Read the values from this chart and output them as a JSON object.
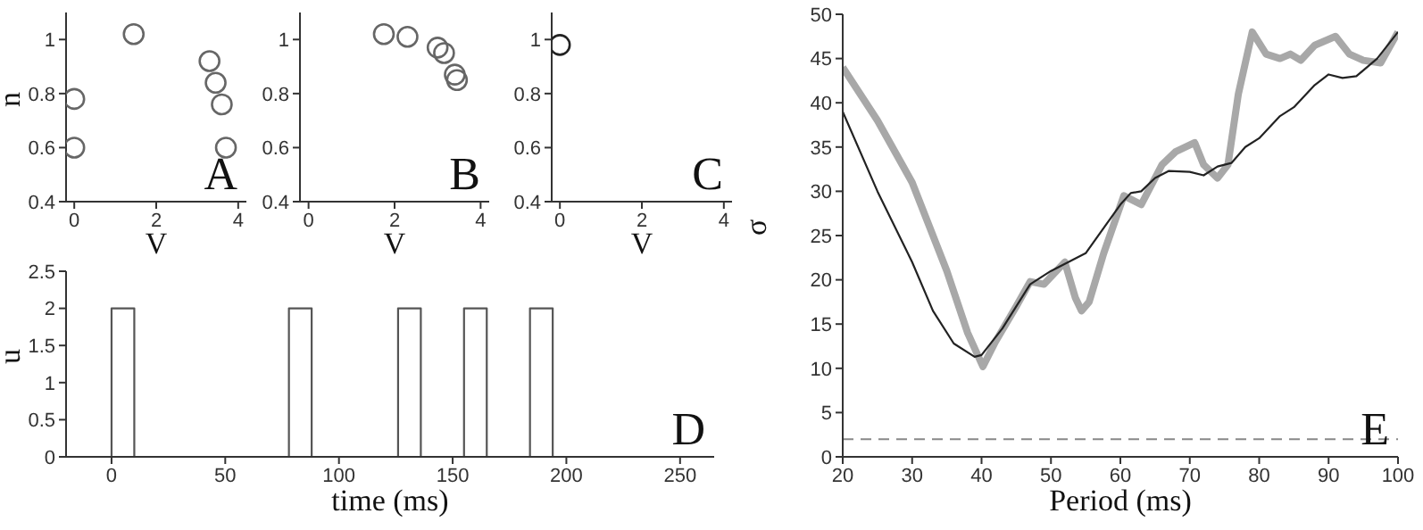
{
  "chart_data": [
    {
      "type": "scatter",
      "xlabel": "V",
      "ylabel": "n",
      "annotations": [
        "A"
      ],
      "marker": "circle",
      "xlim": [
        -0.2,
        4.2
      ],
      "ylim": [
        0.4,
        1.1
      ],
      "xticks": [
        0,
        2,
        4
      ],
      "yticks": [
        0.4,
        0.6,
        0.8,
        1
      ],
      "series": [
        {
          "color": "#666666",
          "x": [
            0,
            0,
            1.45,
            3.3,
            3.45,
            3.6,
            3.7
          ],
          "values": [
            0.78,
            0.6,
            1.02,
            0.92,
            0.84,
            0.76,
            0.6
          ]
        }
      ]
    },
    {
      "type": "scatter",
      "xlabel": "V",
      "annotations": [
        "B"
      ],
      "marker": "circle",
      "xlim": [
        -0.2,
        4.2
      ],
      "ylim": [
        0.4,
        1.1
      ],
      "xticks": [
        0,
        2,
        4
      ],
      "yticks": [
        0.4,
        0.6,
        0.8,
        1
      ],
      "series": [
        {
          "color": "#666666",
          "x": [
            1.75,
            2.3,
            3.0,
            3.15,
            3.4,
            3.45
          ],
          "values": [
            1.02,
            1.01,
            0.97,
            0.95,
            0.87,
            0.85
          ]
        }
      ]
    },
    {
      "type": "scatter",
      "xlabel": "V",
      "annotations": [
        "C"
      ],
      "marker": "circle",
      "xlim": [
        -0.2,
        4.2
      ],
      "ylim": [
        0.4,
        1.1
      ],
      "xticks": [
        0,
        2,
        4
      ],
      "yticks": [
        0.4,
        0.6,
        0.8,
        1
      ],
      "series": [
        {
          "color": "#222222",
          "x": [
            0
          ],
          "values": [
            0.98
          ]
        }
      ]
    },
    {
      "type": "step",
      "xlabel": "time (ms)",
      "ylabel": "u",
      "annotations": [
        "D"
      ],
      "xlim": [
        -20,
        265
      ],
      "ylim": [
        0,
        2.5
      ],
      "xticks": [
        0,
        50,
        100,
        150,
        200,
        250
      ],
      "yticks": [
        0,
        0.5,
        1,
        1.5,
        2,
        2.5
      ],
      "series": [
        {
          "color": "#555555",
          "x": [
            -20,
            0,
            10,
            78,
            88,
            126,
            136,
            155,
            165,
            184,
            194,
            265
          ],
          "values": [
            0,
            2,
            0,
            2,
            0,
            2,
            0,
            2,
            0,
            2,
            0,
            0
          ]
        }
      ]
    },
    {
      "type": "line",
      "xlabel": "Period (ms)",
      "ylabel": "σ",
      "annotations": [
        "E"
      ],
      "xlim": [
        20,
        100
      ],
      "ylim": [
        0,
        50
      ],
      "xticks": [
        20,
        30,
        40,
        50,
        60,
        70,
        80,
        90,
        100
      ],
      "yticks": [
        0,
        5,
        10,
        15,
        20,
        25,
        30,
        35,
        40,
        45,
        50
      ],
      "ref_lines": [
        {
          "axis": "y",
          "value": 2,
          "color": "#888888",
          "line_style": "dashed"
        }
      ],
      "series": [
        {
          "color": "#a8a8a8",
          "x": [
            20,
            25,
            30,
            35,
            38,
            40.2,
            42,
            45,
            47,
            49,
            52,
            53.5,
            54.4,
            55.5,
            57.6,
            60.5,
            63,
            66,
            68,
            70.7,
            72,
            74,
            75.5,
            77,
            79,
            81,
            83,
            84.5,
            86,
            88,
            91,
            93,
            95,
            97.5,
            100
          ],
          "values": [
            44,
            38,
            31,
            21,
            14,
            10.2,
            13,
            17,
            19.8,
            19.5,
            22,
            18,
            16.5,
            17.5,
            23,
            29.5,
            28.5,
            33,
            34.5,
            35.5,
            33,
            31.5,
            33,
            41,
            48,
            45.5,
            45,
            45.5,
            44.8,
            46.5,
            47.5,
            45.5,
            44.8,
            44.5,
            48
          ]
        },
        {
          "color": "#222222",
          "x": [
            20,
            25,
            30,
            33,
            36,
            39,
            40,
            43,
            47,
            50,
            55,
            60,
            61.5,
            63,
            65,
            67,
            70,
            72,
            74,
            76,
            78,
            80,
            83,
            85,
            88,
            90,
            92,
            94,
            97,
            100
          ],
          "values": [
            39,
            30,
            22,
            16.5,
            12.8,
            11.3,
            11.5,
            14.5,
            19.5,
            21,
            23,
            28.5,
            29.8,
            30,
            31.5,
            32.3,
            32.2,
            31.8,
            32.8,
            33.2,
            35,
            36,
            38.5,
            39.5,
            42,
            43.2,
            42.8,
            43,
            45,
            48
          ]
        }
      ]
    }
  ]
}
